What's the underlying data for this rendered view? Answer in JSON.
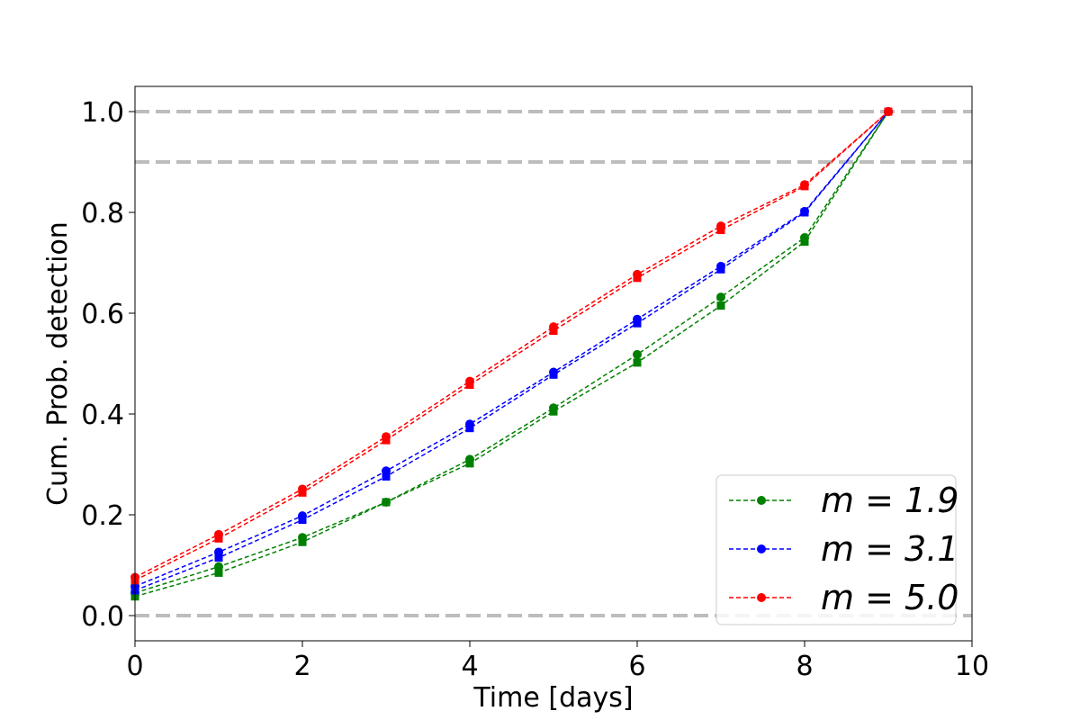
{
  "chart_data": {
    "type": "line",
    "title": "",
    "xlabel": "Time [days]",
    "ylabel": "Cum. Prob. detection",
    "xlim": [
      0,
      10
    ],
    "ylim": [
      -0.05,
      1.05
    ],
    "xticks": [
      0,
      2,
      4,
      6,
      8,
      10
    ],
    "xtick_labels": [
      "0",
      "2",
      "4",
      "6",
      "8",
      "10"
    ],
    "yticks": [
      0.0,
      0.2,
      0.4,
      0.6,
      0.8,
      1.0
    ],
    "ytick_labels": [
      "0.0",
      "0.2",
      "0.4",
      "0.6",
      "0.8",
      "1.0"
    ],
    "reference_lines": [
      0.0,
      0.9,
      1.0
    ],
    "grid": false,
    "legend_position": "bottom-right",
    "x": [
      0,
      1,
      2,
      3,
      4,
      5,
      6,
      7,
      8,
      9
    ],
    "series": [
      {
        "name": "m = 1.9",
        "legend_label": "m = 1.9",
        "color": "#008000",
        "marker": "circle",
        "values": [
          0.045,
          0.097,
          0.155,
          0.225,
          0.31,
          0.412,
          0.518,
          0.632,
          0.75,
          1.0
        ]
      },
      {
        "name": "",
        "color": "#008000",
        "marker": "square",
        "values": [
          0.038,
          0.085,
          0.146,
          0.225,
          0.302,
          0.405,
          0.502,
          0.615,
          0.742,
          1.0
        ]
      },
      {
        "name": "m = 3.1",
        "legend_label": "m = 3.1",
        "color": "#0000ff",
        "marker": "circle",
        "values": [
          0.058,
          0.126,
          0.198,
          0.287,
          0.38,
          0.483,
          0.588,
          0.693,
          0.802,
          1.0
        ]
      },
      {
        "name": "",
        "color": "#0000ff",
        "marker": "square",
        "values": [
          0.05,
          0.115,
          0.19,
          0.276,
          0.372,
          0.478,
          0.58,
          0.687,
          0.8,
          1.0
        ]
      },
      {
        "name": "m = 5.0",
        "legend_label": "m = 5.0",
        "color": "#ff0000",
        "marker": "circle",
        "values": [
          0.076,
          0.161,
          0.251,
          0.355,
          0.465,
          0.573,
          0.677,
          0.773,
          0.855,
          1.0
        ]
      },
      {
        "name": "",
        "color": "#ff0000",
        "marker": "square",
        "values": [
          0.07,
          0.153,
          0.244,
          0.348,
          0.458,
          0.565,
          0.67,
          0.765,
          0.852,
          1.0
        ]
      }
    ]
  }
}
